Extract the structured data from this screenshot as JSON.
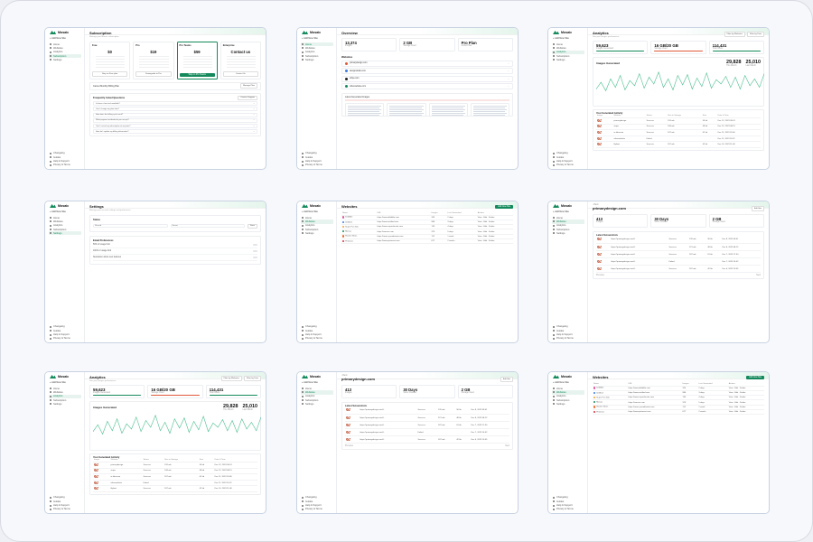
{
  "app": {
    "name": "Mosaic",
    "add_site": "Add New Site"
  },
  "nav": [
    {
      "label": "Home",
      "icon": "home-icon"
    },
    {
      "label": "Websites",
      "icon": "globe-icon"
    },
    {
      "label": "Analytics",
      "icon": "chart-icon"
    },
    {
      "label": "Subscription",
      "icon": "card-icon"
    },
    {
      "label": "Settings",
      "icon": "gear-icon"
    }
  ],
  "nav_bottom": [
    "Changelog",
    "Guides",
    "Help & Support",
    "Privacy & Terms"
  ],
  "subscription": {
    "title": "Subscription",
    "subtitle": "Manage your Mosaic subscription",
    "plans": [
      {
        "name": "Free",
        "price": "$0",
        "cta": "Stay on Free plan",
        "featured": false
      },
      {
        "name": "Pro",
        "price": "$19",
        "cta": "Downgrade to Pro",
        "featured": false
      },
      {
        "name": "Pro Teams",
        "price": "$59",
        "cta": "Stay on Pro Teams",
        "featured": true
      },
      {
        "name": "Enterprise",
        "price": "Contact us",
        "cta": "Contact Us",
        "featured": false
      }
    ],
    "cancel_title": "Cancel Monthly Billing Plan",
    "cancel_button": "Manage Plan",
    "faq_title": "Frequently Asked Questions",
    "faq_button": "Contact Support",
    "faqs": [
      "Is there a free trial available?",
      "Can I change my plan later?",
      "How does the billing cycle work?",
      "What payment methods do you accept?",
      "Can I cancel my subscription at any time?",
      "How do I update my billing information?"
    ]
  },
  "overview": {
    "title": "Overview",
    "stats": [
      {
        "value": "13,374",
        "label": "Images"
      },
      {
        "value": "2 GB",
        "label": "Storage Used"
      },
      {
        "value": "Pro Plan",
        "label": "Active Plan"
      }
    ],
    "websites_title": "Websites",
    "websites": [
      "primarydesign.com",
      "designstudio.com",
      "stripe.com",
      "otherwebsite.com"
    ],
    "latest_title": "Latest Generated Images"
  },
  "analytics": {
    "title": "Analytics",
    "subtitle": "See your images performance",
    "btn_website": "Filter by Websites",
    "btn_date": "Filter by Date",
    "stats": [
      {
        "value": "59,623",
        "label": "Images Generated"
      },
      {
        "value": "16 GB/20 GB",
        "label": "Storage Used"
      },
      {
        "value": "114,431",
        "label": "Total Views"
      }
    ],
    "chart_title": "Images Generated",
    "chart_stats": [
      {
        "value": "29,828",
        "label": "This Month"
      },
      {
        "value": "25,010",
        "label": "Last Month"
      }
    ],
    "table_title": "Your Generated Activity",
    "columns": [
      "Image",
      "Website",
      "Status",
      "Size in Storage",
      "Size",
      "Date & Time"
    ],
    "rows": [
      [
        "",
        "primarydesign",
        "Success",
        "126 mb",
        "56 kb",
        "Dec 12, 2023 09:41"
      ],
      [
        "",
        "stripe",
        "Success",
        "108 mb",
        "48 kb",
        "Dec 12, 2023 08:15"
      ],
      [
        "",
        "in.fakecom",
        "Success",
        "187 mb",
        "61 kb",
        "Dec 11, 2023 19:06"
      ],
      [
        "",
        "otherwebsite",
        "Failed",
        "",
        "",
        "Dec 11, 2023 16:22"
      ],
      [
        "",
        "flipkart",
        "Success",
        "187 mb",
        "42 kb",
        "Dec 10, 2023 11:08"
      ]
    ]
  },
  "settings": {
    "title": "Settings",
    "subtitle": "Manage your account settings and preferences",
    "status_title": "Status",
    "field_label": "Shared",
    "field_value": "Server",
    "save": "Save",
    "email_title": "Email Preferences",
    "prefs": [
      "50% of usage limit",
      "100% of usage limit",
      "Newsletter about new features"
    ]
  },
  "websites": {
    "title": "Websites",
    "add_button": "Add New Site",
    "columns": [
      "Name",
      "URL",
      "Images",
      "Last Generated",
      "Actions"
    ],
    "sites": [
      {
        "name": "Dribbble",
        "url": "https://www.dribbble.com",
        "images": "324",
        "last": "2 days"
      },
      {
        "name": "Untitled",
        "url": "https://www.untitled.com",
        "images": "986",
        "last": "3 days"
      },
      {
        "name": "Super Fun Site",
        "url": "https://www.superfunsite.com",
        "images": "135",
        "last": "4 days"
      },
      {
        "name": "Mosaic",
        "url": "https://mosaic.com",
        "images": "379",
        "last": "5 days"
      },
      {
        "name": "Hacker News",
        "url": "https://news.ycombinator.com",
        "images": "112",
        "last": "1 week"
      },
      {
        "name": "Pinterest",
        "url": "https://www.pinterest.com",
        "images": "677",
        "last": "2 weeks"
      }
    ],
    "action_label": "View · Edit · Delete"
  },
  "site_detail": {
    "back": "Back",
    "domain": "primarydesign.com",
    "edit": "Edit Site",
    "stats": [
      {
        "value": "413",
        "label": "Images"
      },
      {
        "value": "30 Days",
        "label": "Since Created"
      },
      {
        "value": "2 GB",
        "label": "Storage Used"
      }
    ],
    "table_title": "Latest Screenshots",
    "url": "https://primarydesign.com/l..",
    "rows": [
      [
        "Success",
        "126 mb",
        "56 kb",
        "Dec 8, 2023 09:41"
      ],
      [
        "Success",
        "221 mb",
        "48 kb",
        "Dec 8, 2023 08:12"
      ],
      [
        "Success",
        "187 mb",
        "61 kb",
        "Dec 7, 2023 17:30"
      ],
      [
        "Failed",
        "",
        "",
        "Dec 7, 2023 14:02"
      ],
      [
        "Success",
        "187 mb",
        "42 kb",
        "Dec 6, 2023 10:55"
      ]
    ],
    "prev": "Previous",
    "next": "Next"
  },
  "colors": {
    "accent": "#148a5c",
    "warn": "#e05a3a",
    "line": "#4cbf8f"
  },
  "chart_data": [
    {
      "type": "line",
      "title": "Images Generated",
      "series": [
        {
          "values": [
            10,
            18,
            8,
            22,
            12,
            26,
            9,
            20,
            14,
            28,
            11,
            24,
            16,
            30,
            12,
            22,
            9,
            26,
            15,
            27,
            10,
            23,
            13,
            29,
            11,
            21,
            16,
            25,
            12,
            24,
            10,
            26,
            14,
            22,
            12,
            28
          ]
        }
      ]
    },
    {
      "type": "line",
      "title": "Images Generated",
      "series": [
        {
          "values": [
            12,
            20,
            9,
            24,
            13,
            27,
            10,
            21,
            15,
            29,
            12,
            25,
            17,
            31,
            13,
            23,
            10,
            27,
            16,
            28,
            11,
            24,
            14,
            30,
            12,
            22,
            17,
            26,
            13,
            25,
            11,
            27,
            15,
            23,
            13,
            29
          ]
        }
      ]
    }
  ]
}
